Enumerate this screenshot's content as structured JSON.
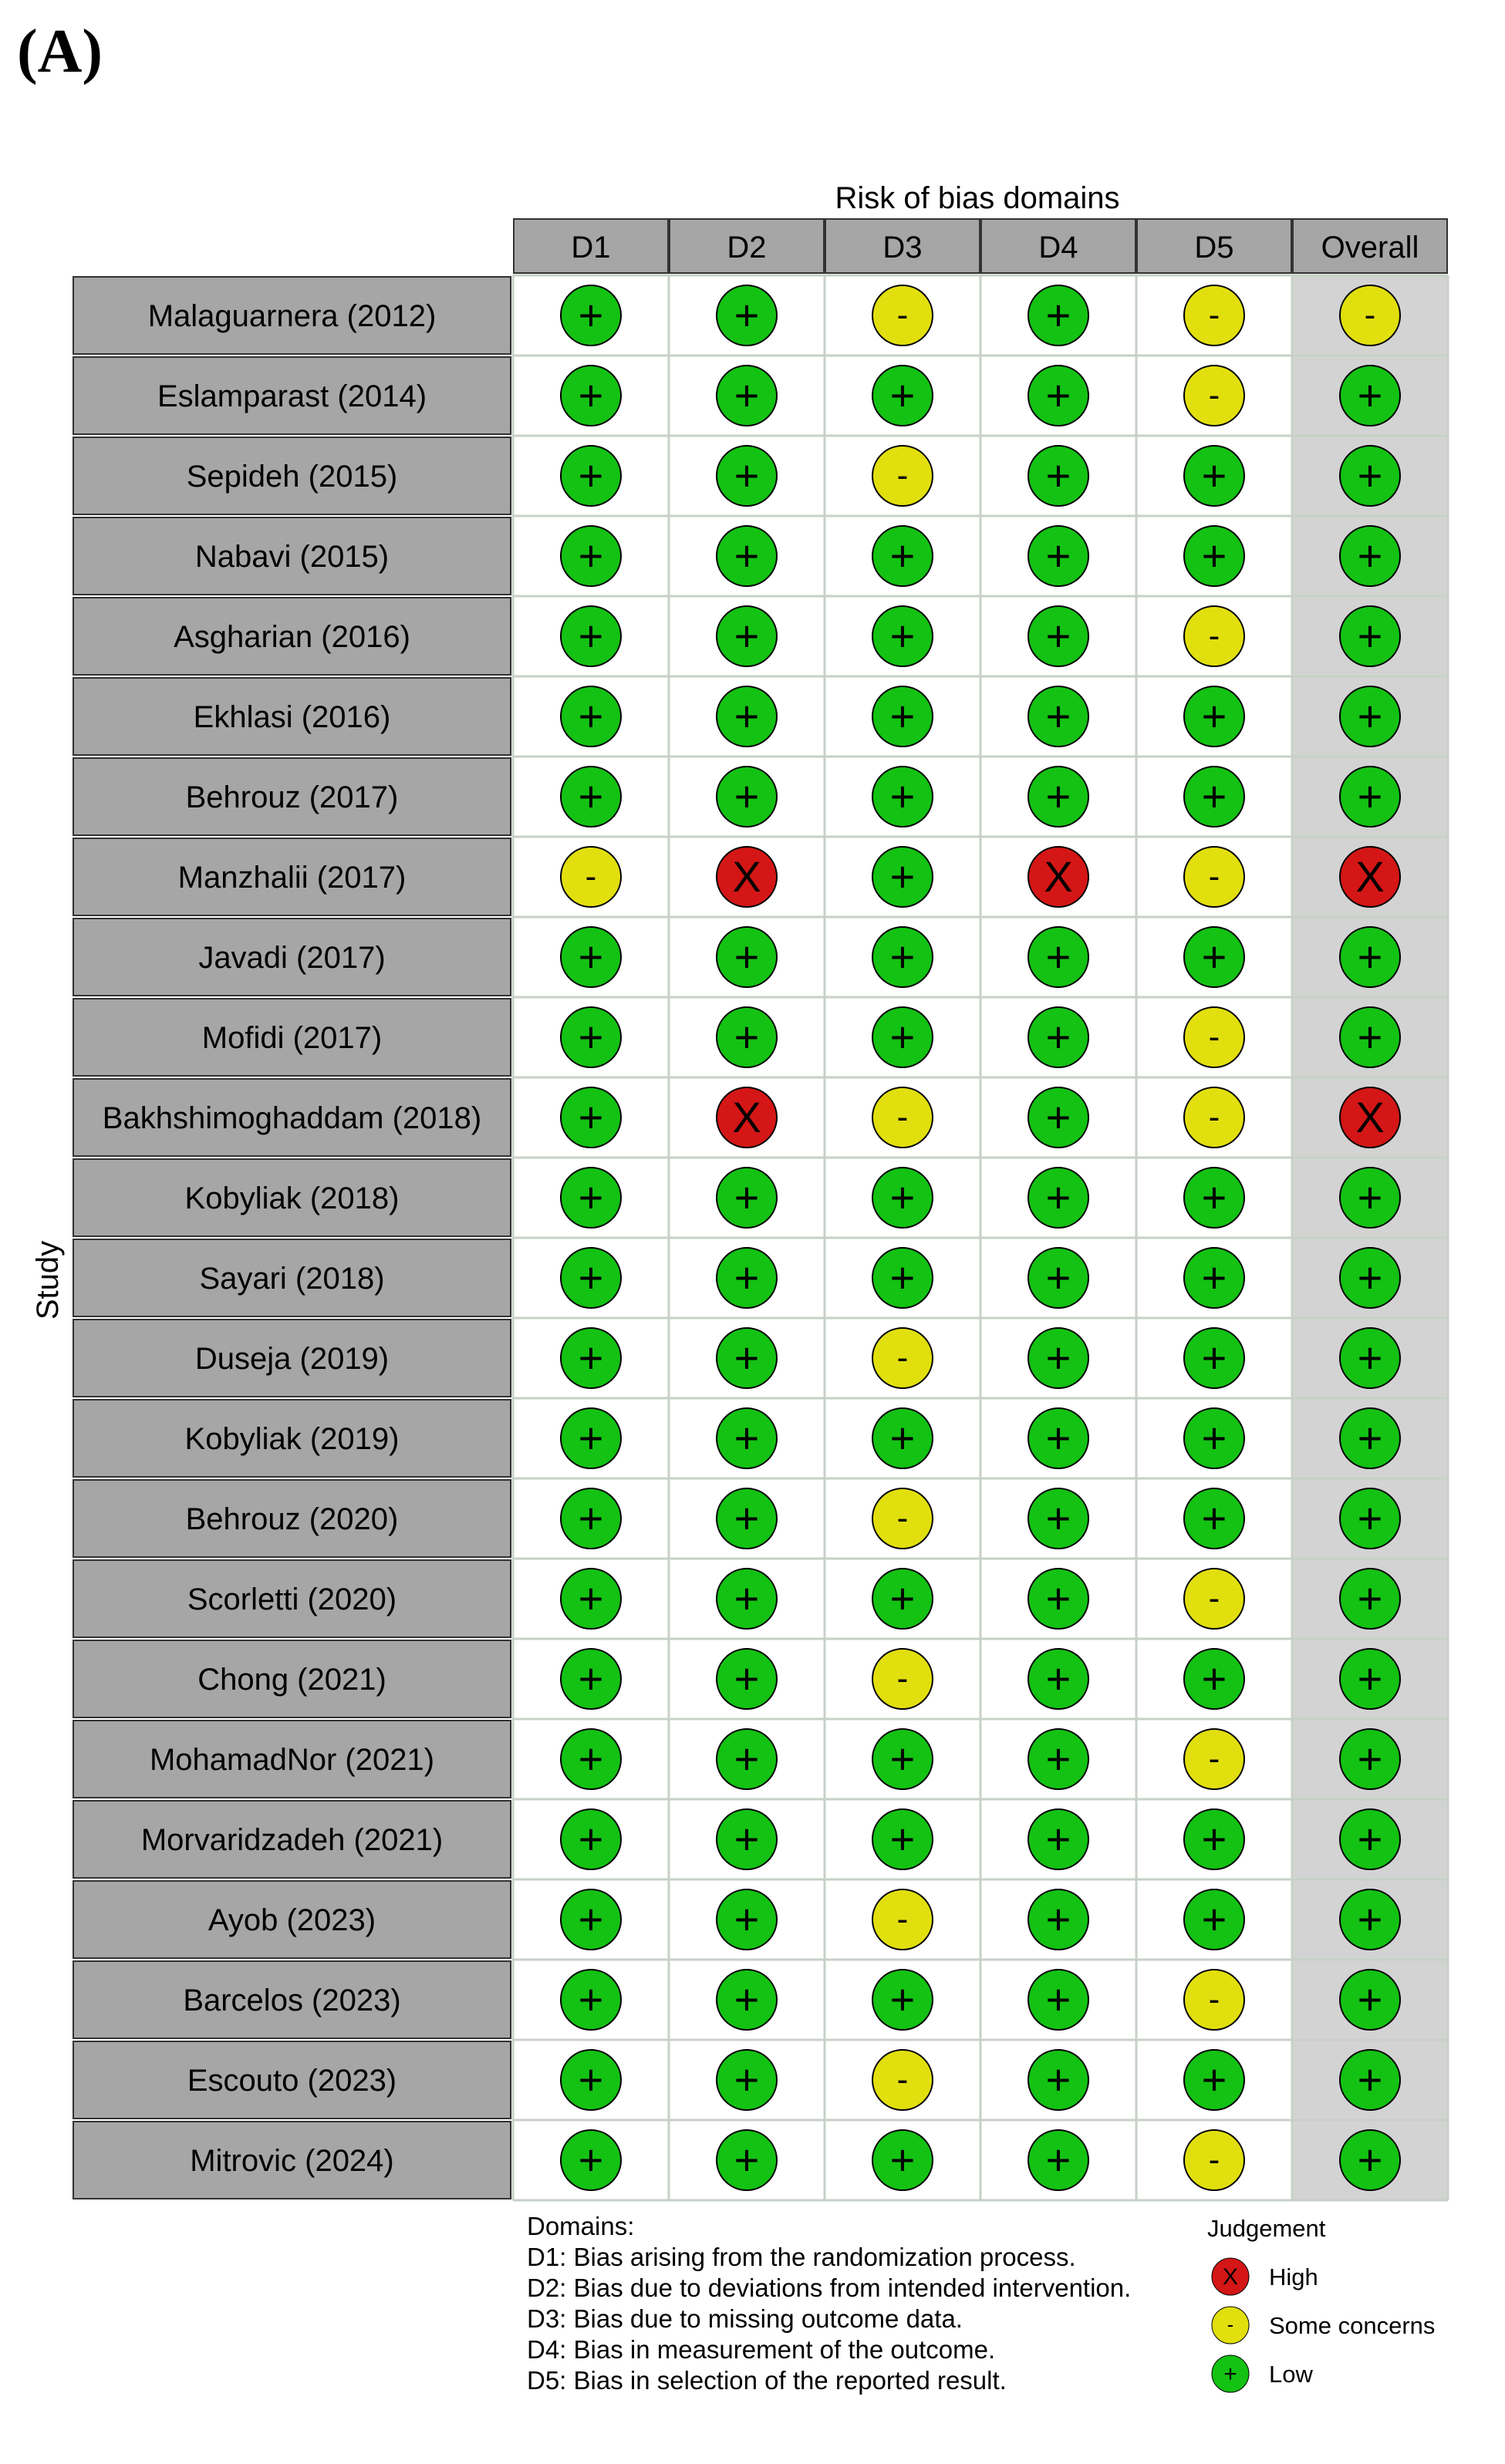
{
  "panel_label": "(A)",
  "chart_data": {
    "type": "table",
    "title": "Risk of bias domains",
    "ylabel": "Study",
    "columns": [
      "D1",
      "D2",
      "D3",
      "D4",
      "D5",
      "Overall"
    ],
    "studies": [
      "Malaguarnera (2012)",
      "Eslamparast (2014)",
      "Sepideh (2015)",
      "Nabavi (2015)",
      "Asgharian (2016)",
      "Ekhlasi (2016)",
      "Behrouz (2017)",
      "Manzhalii (2017)",
      "Javadi (2017)",
      "Mofidi (2017)",
      "Bakhshimoghaddam (2018)",
      "Kobyliak (2018)",
      "Sayari (2018)",
      "Duseja (2019)",
      "Kobyliak (2019)",
      "Behrouz (2020)",
      "Scorletti (2020)",
      "Chong (2021)",
      "MohamadNor (2021)",
      "Morvaridzadeh (2021)",
      "Ayob (2023)",
      "Barcelos (2023)",
      "Escouto (2023)",
      "Mitrovic (2024)"
    ],
    "judgements": [
      [
        "low",
        "low",
        "some",
        "low",
        "some",
        "some"
      ],
      [
        "low",
        "low",
        "low",
        "low",
        "some",
        "low"
      ],
      [
        "low",
        "low",
        "some",
        "low",
        "low",
        "low"
      ],
      [
        "low",
        "low",
        "low",
        "low",
        "low",
        "low"
      ],
      [
        "low",
        "low",
        "low",
        "low",
        "some",
        "low"
      ],
      [
        "low",
        "low",
        "low",
        "low",
        "low",
        "low"
      ],
      [
        "low",
        "low",
        "low",
        "low",
        "low",
        "low"
      ],
      [
        "some",
        "high",
        "low",
        "high",
        "some",
        "high"
      ],
      [
        "low",
        "low",
        "low",
        "low",
        "low",
        "low"
      ],
      [
        "low",
        "low",
        "low",
        "low",
        "some",
        "low"
      ],
      [
        "low",
        "high",
        "some",
        "low",
        "some",
        "high"
      ],
      [
        "low",
        "low",
        "low",
        "low",
        "low",
        "low"
      ],
      [
        "low",
        "low",
        "low",
        "low",
        "low",
        "low"
      ],
      [
        "low",
        "low",
        "some",
        "low",
        "low",
        "low"
      ],
      [
        "low",
        "low",
        "low",
        "low",
        "low",
        "low"
      ],
      [
        "low",
        "low",
        "some",
        "low",
        "low",
        "low"
      ],
      [
        "low",
        "low",
        "low",
        "low",
        "some",
        "low"
      ],
      [
        "low",
        "low",
        "some",
        "low",
        "low",
        "low"
      ],
      [
        "low",
        "low",
        "low",
        "low",
        "some",
        "low"
      ],
      [
        "low",
        "low",
        "low",
        "low",
        "low",
        "low"
      ],
      [
        "low",
        "low",
        "some",
        "low",
        "low",
        "low"
      ],
      [
        "low",
        "low",
        "low",
        "low",
        "some",
        "low"
      ],
      [
        "low",
        "low",
        "some",
        "low",
        "low",
        "low"
      ],
      [
        "low",
        "low",
        "low",
        "low",
        "some",
        "low"
      ]
    ],
    "symbols": {
      "low": "+",
      "some": "-",
      "high": "X"
    },
    "colors": {
      "low": "#13c213",
      "some": "#e2df0e",
      "high": "#d41616",
      "label_fill": "#a6a6a6",
      "overall_fill": "#d3d3d3",
      "grid": "#c7d1c7"
    },
    "domains_legend": {
      "title": "Domains:",
      "items": [
        "D1: Bias arising from the randomization process.",
        "D2: Bias due to deviations from intended intervention.",
        "D3: Bias due to missing outcome data.",
        "D4: Bias in measurement of the outcome.",
        "D5: Bias in selection of the reported result."
      ]
    },
    "judgement_legend": {
      "title": "Judgement",
      "items": [
        {
          "key": "high",
          "label": "High"
        },
        {
          "key": "some",
          "label": "Some concerns"
        },
        {
          "key": "low",
          "label": "Low"
        }
      ]
    }
  }
}
